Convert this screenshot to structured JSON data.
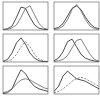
{
  "chart_data": [
    {
      "type": "line",
      "x": [
        0,
        1,
        2,
        3,
        4,
        5,
        6,
        7,
        8,
        9,
        10
      ],
      "xlim": [
        0,
        10
      ],
      "ylim": [
        0,
        1.1
      ],
      "tick_labels": false,
      "series": [
        {
          "color": "#222222",
          "line_style": "solid",
          "values": [
            0.02,
            0.05,
            0.15,
            0.5,
            0.9,
            0.85,
            0.5,
            0.2,
            0.07,
            0.03,
            0.01
          ]
        },
        {
          "color": "#666666",
          "line_style": "solid",
          "values": [
            0.01,
            0.03,
            0.08,
            0.2,
            0.5,
            0.85,
            0.95,
            0.6,
            0.25,
            0.08,
            0.02
          ]
        }
      ]
    },
    {
      "type": "line",
      "x": [
        0,
        1,
        2,
        3,
        4,
        5,
        6,
        7,
        8,
        9,
        10
      ],
      "xlim": [
        0,
        10
      ],
      "ylim": [
        0,
        1.1
      ],
      "tick_labels": false,
      "series": [
        {
          "color": "#222222",
          "line_style": "solid",
          "values": [
            0.05,
            0.1,
            0.25,
            0.55,
            0.85,
            0.95,
            0.8,
            0.5,
            0.25,
            0.1,
            0.05
          ]
        },
        {
          "color": "#666666",
          "line_style": "solid",
          "values": [
            0.02,
            0.05,
            0.15,
            0.4,
            0.8,
            1.0,
            0.75,
            0.4,
            0.15,
            0.05,
            0.02
          ]
        }
      ]
    },
    {
      "type": "line",
      "x": [
        0,
        1,
        2,
        3,
        4,
        5,
        6,
        7,
        8,
        9,
        10
      ],
      "xlim": [
        0,
        10
      ],
      "ylim": [
        0,
        1.1
      ],
      "tick_labels": false,
      "series": [
        {
          "color": "#222222",
          "line_style": "solid",
          "values": [
            0.02,
            0.1,
            0.35,
            0.75,
            0.95,
            0.7,
            0.35,
            0.15,
            0.05,
            0.02,
            0.01
          ]
        },
        {
          "color": "#666666",
          "line_style": "dashed",
          "values": [
            0.01,
            0.03,
            0.1,
            0.3,
            0.6,
            0.8,
            0.6,
            0.3,
            0.12,
            0.04,
            0.01
          ]
        }
      ]
    },
    {
      "type": "line",
      "x": [
        0,
        1,
        2,
        3,
        4,
        5,
        6,
        7,
        8,
        9,
        10
      ],
      "xlim": [
        0,
        10
      ],
      "ylim": [
        0,
        1.1
      ],
      "tick_labels": false,
      "series": [
        {
          "color": "#222222",
          "line_style": "solid",
          "values": [
            0.05,
            0.15,
            0.4,
            0.8,
            0.9,
            0.6,
            0.3,
            0.15,
            0.08,
            0.04,
            0.02
          ]
        },
        {
          "color": "#666666",
          "line_style": "solid",
          "values": [
            0.02,
            0.05,
            0.1,
            0.25,
            0.55,
            0.85,
            0.9,
            0.6,
            0.3,
            0.1,
            0.03
          ]
        }
      ]
    },
    {
      "type": "line",
      "x": [
        0,
        1,
        2,
        3,
        4,
        5,
        6,
        7,
        8,
        9,
        10
      ],
      "xlim": [
        0,
        10
      ],
      "ylim": [
        0,
        1.1
      ],
      "tick_labels": false,
      "series": [
        {
          "color": "#222222",
          "line_style": "solid",
          "values": [
            0.02,
            0.05,
            0.2,
            0.6,
            0.95,
            0.8,
            0.5,
            0.3,
            0.2,
            0.15,
            0.1
          ]
        },
        {
          "color": "#666666",
          "line_style": "solid",
          "values": [
            0.05,
            0.1,
            0.2,
            0.4,
            0.55,
            0.6,
            0.55,
            0.45,
            0.35,
            0.25,
            0.2
          ]
        }
      ]
    },
    {
      "type": "line",
      "x": [
        0,
        1,
        2,
        3,
        4,
        5,
        6,
        7,
        8,
        9,
        10
      ],
      "xlim": [
        0,
        10
      ],
      "ylim": [
        0,
        1.1
      ],
      "tick_labels": false,
      "series": [
        {
          "color": "#222222",
          "line_style": "solid",
          "values": [
            0.1,
            0.3,
            0.7,
            0.9,
            0.75,
            0.6,
            0.55,
            0.5,
            0.4,
            0.3,
            0.2
          ]
        },
        {
          "color": "#666666",
          "line_style": "dashed",
          "values": [
            0.05,
            0.1,
            0.2,
            0.35,
            0.5,
            0.6,
            0.65,
            0.6,
            0.5,
            0.4,
            0.3
          ]
        }
      ]
    }
  ]
}
